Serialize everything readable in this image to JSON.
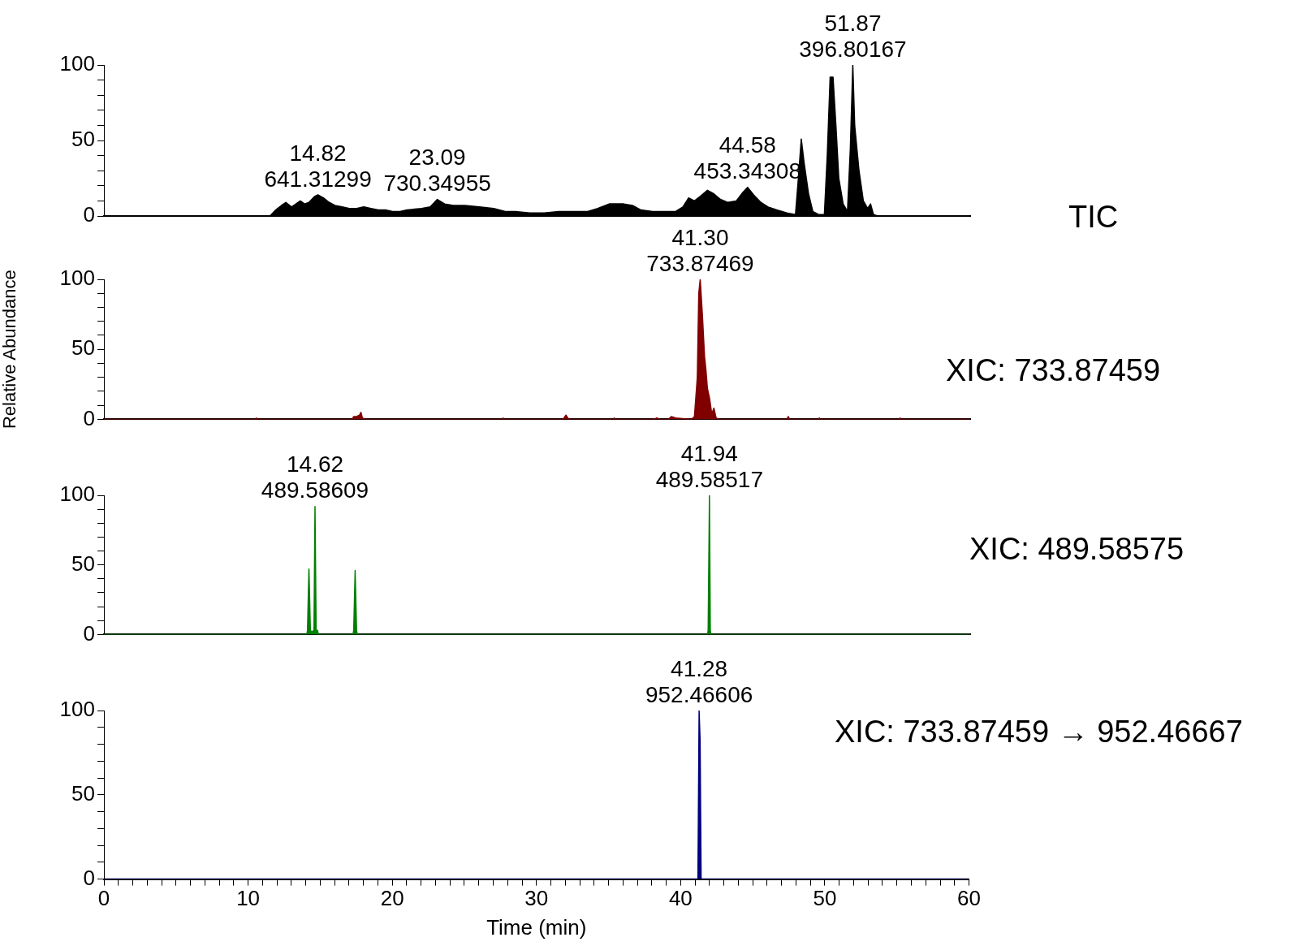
{
  "chart_data": [
    {
      "type": "area",
      "color": "#000000",
      "xlim": [
        0,
        60
      ],
      "ylim": [
        0,
        100
      ],
      "tick_labels": "y",
      "grid": false,
      "legend": false,
      "marker": "none",
      "yticks": [
        0,
        {
          "value": 10,
          "label": null
        },
        {
          "value": 20,
          "label": null
        },
        {
          "value": 30,
          "label": null
        },
        {
          "value": 40,
          "label": null
        },
        50,
        {
          "value": 60,
          "label": null
        },
        {
          "value": 70,
          "label": null
        },
        {
          "value": 80,
          "label": null
        },
        {
          "value": 90,
          "label": null
        },
        100
      ],
      "x": [
        0,
        11.5,
        11.9,
        12.3,
        12.6,
        13.0,
        13.3,
        13.6,
        13.9,
        14.2,
        14.6,
        14.82,
        15.2,
        15.6,
        16.0,
        16.5,
        17.0,
        17.5,
        18.0,
        18.5,
        19.0,
        19.5,
        20.0,
        20.5,
        21.0,
        22.0,
        22.6,
        23.09,
        23.6,
        24.2,
        25,
        26,
        27,
        27.8,
        28.5,
        29.5,
        30.5,
        31.5,
        32.5,
        33.5,
        34.2,
        35,
        36,
        36.6,
        37.2,
        38,
        39,
        39.6,
        40.1,
        40.5,
        40.9,
        41.3,
        41.8,
        42.2,
        42.7,
        43.2,
        43.8,
        44.2,
        44.58,
        45.0,
        45.5,
        46,
        46.6,
        47.3,
        47.9,
        48.1,
        48.3,
        48.5,
        48.8,
        49.1,
        49.5,
        49.9,
        50.1,
        50.3,
        50.5,
        50.7,
        50.9,
        51.2,
        51.5,
        51.7,
        51.87,
        52.0,
        52.3,
        52.6,
        52.9,
        53.1,
        53.3,
        53.6,
        60
      ],
      "values": [
        0,
        0,
        4,
        7,
        9,
        6,
        8,
        10,
        8,
        9,
        13,
        14,
        12,
        9,
        7,
        6,
        5,
        5,
        6,
        5,
        4,
        4,
        3,
        3,
        4,
        5,
        6,
        11,
        8,
        7,
        7,
        6,
        5,
        3,
        3,
        2,
        2,
        3,
        3,
        3,
        5,
        8,
        8,
        7,
        4,
        3,
        3,
        3,
        6,
        12,
        10,
        13,
        17,
        15,
        11,
        9,
        10,
        15,
        19,
        14,
        9,
        6,
        4,
        2,
        1,
        25,
        51,
        35,
        15,
        3,
        1,
        1,
        40,
        92,
        92,
        60,
        25,
        8,
        3,
        45,
        100,
        60,
        30,
        10,
        5,
        8,
        1,
        0,
        0
      ],
      "annotations": [
        "TIC",
        {
          "text": "14.82\n641.31299",
          "x": 14.82,
          "y": 14
        },
        {
          "text": "23.09\n730.34955",
          "x": 23.09,
          "y": 11
        },
        {
          "text": "44.58\n453.34308",
          "x": 44.58,
          "y": 19
        },
        {
          "text": "51.87\n396.80167",
          "x": 51.87,
          "y": 100
        }
      ]
    },
    {
      "type": "area",
      "title": "XIC: 733.87459",
      "ylabel": "Relative Abundance",
      "color": "#800000",
      "xlim": [
        0,
        60
      ],
      "ylim": [
        0,
        100
      ],
      "tick_labels": "y",
      "grid": false,
      "legend": false,
      "marker": "none",
      "yticks": [
        0,
        {
          "value": 10,
          "label": null
        },
        {
          "value": 20,
          "label": null
        },
        {
          "value": 30,
          "label": null
        },
        {
          "value": 40,
          "label": null
        },
        50,
        {
          "value": 60,
          "label": null
        },
        {
          "value": 70,
          "label": null
        },
        {
          "value": 80,
          "label": null
        },
        {
          "value": 90,
          "label": null
        },
        100
      ],
      "x": [
        0,
        10.5,
        10.55,
        10.6,
        17.2,
        17.3,
        17.5,
        17.7,
        17.8,
        17.9,
        18.1,
        27.6,
        27.65,
        27.7,
        31.8,
        32.0,
        32.2,
        35.3,
        35.35,
        35.4,
        38.1,
        38.3,
        38.5,
        39.1,
        39.3,
        39.6,
        40.7,
        40.9,
        41.1,
        41.2,
        41.3,
        41.45,
        41.6,
        41.7,
        41.8,
        41.95,
        42.1,
        42.25,
        42.4,
        42.6,
        47.3,
        47.4,
        47.5,
        49.5,
        49.55,
        49.6,
        55.1,
        55.15,
        55.2,
        60
      ],
      "values": [
        0,
        0,
        1,
        0,
        0,
        2,
        2,
        3,
        5,
        1,
        0,
        0,
        1,
        0,
        0,
        3,
        0,
        0,
        1,
        0,
        0,
        1,
        0,
        0,
        2,
        1,
        0,
        2,
        30,
        90,
        100,
        75,
        45,
        35,
        22,
        15,
        4,
        8,
        1,
        0,
        0,
        2,
        0,
        0,
        1,
        0,
        0,
        1,
        0,
        0
      ],
      "annotations": [
        {
          "text": "41.30\n733.87469",
          "x": 41.3,
          "y": 100
        }
      ]
    },
    {
      "type": "area",
      "title": "XIC: 489.58575",
      "color": "#008000",
      "xlim": [
        0,
        60
      ],
      "ylim": [
        0,
        100
      ],
      "tick_labels": "y",
      "grid": false,
      "legend": false,
      "marker": "none",
      "yticks": [
        0,
        {
          "value": 10,
          "label": null
        },
        {
          "value": 20,
          "label": null
        },
        {
          "value": 30,
          "label": null
        },
        {
          "value": 40,
          "label": null
        },
        50,
        {
          "value": 60,
          "label": null
        },
        {
          "value": 70,
          "label": null
        },
        {
          "value": 80,
          "label": null
        },
        {
          "value": 90,
          "label": null
        },
        100
      ],
      "x": [
        0,
        14.05,
        14.1,
        14.2,
        14.3,
        14.4,
        14.55,
        14.62,
        14.7,
        14.8,
        14.85,
        17.25,
        17.3,
        17.4,
        17.5,
        17.55,
        41.8,
        41.85,
        41.94,
        42.0,
        42.05,
        60
      ],
      "values": [
        0,
        0,
        3,
        47,
        3,
        2,
        3,
        92,
        3,
        3,
        0,
        0,
        3,
        46,
        3,
        0,
        0,
        3,
        100,
        3,
        0,
        0
      ],
      "annotations": [
        {
          "text": "14.62\n489.58609",
          "x": 14.62,
          "y": 92
        },
        {
          "text": "41.94\n489.58517",
          "x": 41.94,
          "y": 100
        }
      ]
    },
    {
      "type": "area",
      "title": "XIC: 733.87459 → 952.46667",
      "xlabel": "Time (min)",
      "color": "#000080",
      "xlim": [
        0,
        60
      ],
      "ylim": [
        0,
        100
      ],
      "grid": false,
      "legend": false,
      "marker": "none",
      "yticks": [
        0,
        {
          "value": 10,
          "label": null
        },
        {
          "value": 20,
          "label": null
        },
        {
          "value": 30,
          "label": null
        },
        {
          "value": 40,
          "label": null
        },
        50,
        {
          "value": 60,
          "label": null
        },
        {
          "value": 70,
          "label": null
        },
        {
          "value": 80,
          "label": null
        },
        {
          "value": 90,
          "label": null
        },
        100
      ],
      "xticks": [
        0,
        {
          "value": 1,
          "label": null
        },
        {
          "value": 2,
          "label": null
        },
        {
          "value": 3,
          "label": null
        },
        {
          "value": 4,
          "label": null
        },
        {
          "value": 5,
          "label": null
        },
        {
          "value": 6,
          "label": null
        },
        {
          "value": 7,
          "label": null
        },
        {
          "value": 8,
          "label": null
        },
        {
          "value": 9,
          "label": null
        },
        10,
        {
          "value": 11,
          "label": null
        },
        {
          "value": 12,
          "label": null
        },
        {
          "value": 13,
          "label": null
        },
        {
          "value": 14,
          "label": null
        },
        {
          "value": 15,
          "label": null
        },
        {
          "value": 16,
          "label": null
        },
        {
          "value": 17,
          "label": null
        },
        {
          "value": 18,
          "label": null
        },
        {
          "value": 19,
          "label": null
        },
        20,
        {
          "value": 21,
          "label": null
        },
        {
          "value": 22,
          "label": null
        },
        {
          "value": 23,
          "label": null
        },
        {
          "value": 24,
          "label": null
        },
        {
          "value": 25,
          "label": null
        },
        {
          "value": 26,
          "label": null
        },
        {
          "value": 27,
          "label": null
        },
        {
          "value": 28,
          "label": null
        },
        {
          "value": 29,
          "label": null
        },
        30,
        {
          "value": 31,
          "label": null
        },
        {
          "value": 32,
          "label": null
        },
        {
          "value": 33,
          "label": null
        },
        {
          "value": 34,
          "label": null
        },
        {
          "value": 35,
          "label": null
        },
        {
          "value": 36,
          "label": null
        },
        {
          "value": 37,
          "label": null
        },
        {
          "value": 38,
          "label": null
        },
        {
          "value": 39,
          "label": null
        },
        40,
        {
          "value": 41,
          "label": null
        },
        {
          "value": 42,
          "label": null
        },
        {
          "value": 43,
          "label": null
        },
        {
          "value": 44,
          "label": null
        },
        {
          "value": 45,
          "label": null
        },
        {
          "value": 46,
          "label": null
        },
        {
          "value": 47,
          "label": null
        },
        {
          "value": 48,
          "label": null
        },
        {
          "value": 49,
          "label": null
        },
        50,
        {
          "value": 51,
          "label": null
        },
        {
          "value": 52,
          "label": null
        },
        {
          "value": 53,
          "label": null
        },
        {
          "value": 54,
          "label": null
        },
        {
          "value": 55,
          "label": null
        },
        {
          "value": 56,
          "label": null
        },
        {
          "value": 57,
          "label": null
        },
        {
          "value": 58,
          "label": null
        },
        {
          "value": 59,
          "label": null
        },
        60
      ],
      "x": [
        0,
        41.2,
        41.28,
        41.35,
        41.42,
        60
      ],
      "values": [
        0,
        0,
        100,
        82,
        0,
        0
      ],
      "annotations": [
        {
          "text": "41.28\n952.46606",
          "x": 41.28,
          "y": 100
        }
      ]
    }
  ]
}
